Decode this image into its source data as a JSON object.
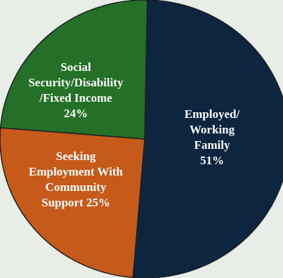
{
  "chart_data": {
    "type": "pie",
    "title": "",
    "slices": [
      {
        "label_lines": [
          "Employed/",
          "Working",
          "Family",
          "51%"
        ],
        "value": 51,
        "color": "#0e2540"
      },
      {
        "label_lines": [
          "Seeking",
          "Employment With",
          "Community",
          "Support 25%"
        ],
        "value": 25,
        "color": "#c65a1b"
      },
      {
        "label_lines": [
          "Social",
          "Security/Disability",
          "/Fixed Income",
          "24%"
        ],
        "value": 24,
        "color": "#247028"
      }
    ]
  }
}
